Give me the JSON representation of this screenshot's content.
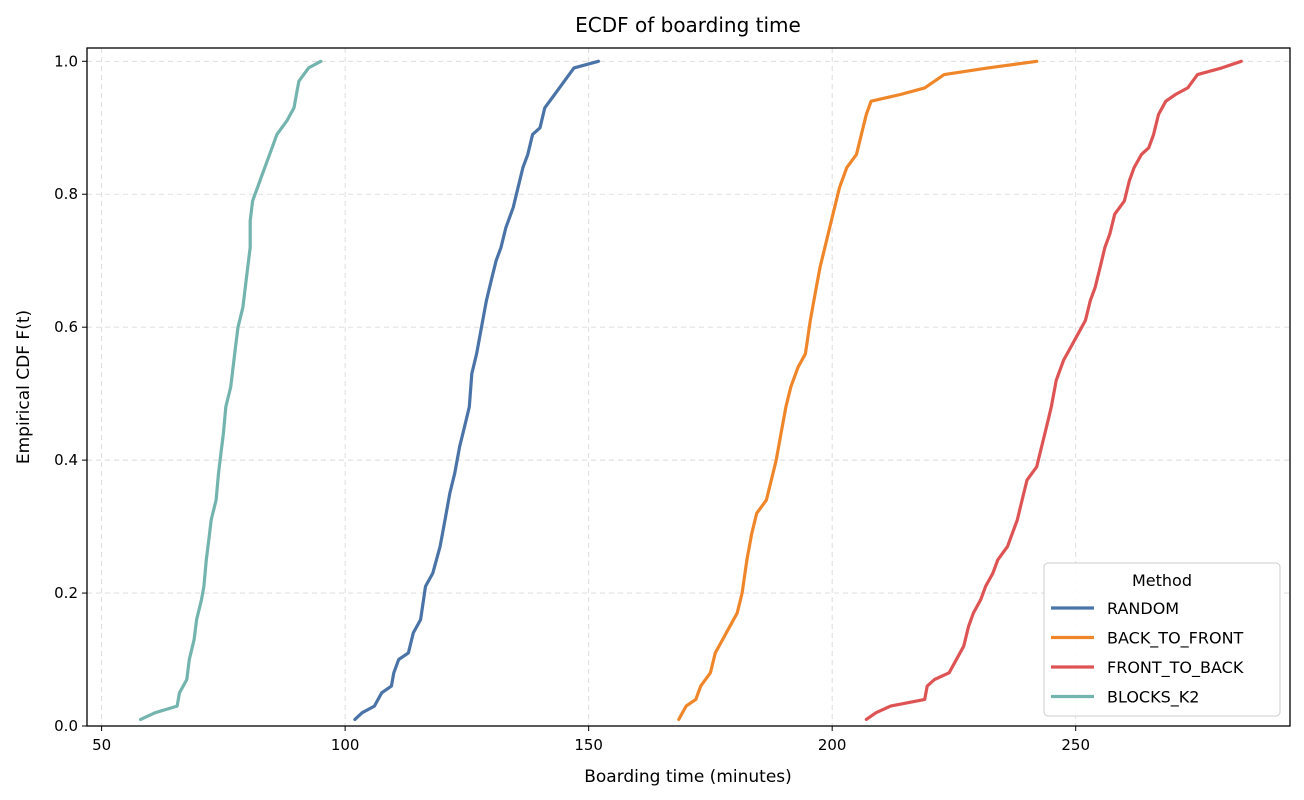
{
  "chart_data": {
    "type": "line",
    "title": "ECDF of boarding time",
    "xlabel": "Boarding time (minutes)",
    "ylabel": "Empirical CDF  F(t)",
    "xlim": [
      47,
      294
    ],
    "ylim": [
      0,
      1.02
    ],
    "xticks": [
      "50",
      "100",
      "150",
      "200",
      "250"
    ],
    "xtick_values": [
      50,
      100,
      150,
      200,
      250
    ],
    "yticks": [
      "0.0",
      "0.2",
      "0.4",
      "0.6",
      "0.8",
      "1.0"
    ],
    "ytick_values": [
      0,
      0.2,
      0.4,
      0.6,
      0.8,
      1.0
    ],
    "grid": true,
    "legend_title": "Method",
    "legend_position": "lower-right",
    "series": [
      {
        "name": "RANDOM",
        "color": "#4a73a8",
        "points": [
          [
            102,
            0.01
          ],
          [
            103.5,
            0.02
          ],
          [
            106,
            0.03
          ],
          [
            107.5,
            0.05
          ],
          [
            109.5,
            0.06
          ],
          [
            110,
            0.08
          ],
          [
            111,
            0.1
          ],
          [
            113,
            0.11
          ],
          [
            114,
            0.14
          ],
          [
            115.5,
            0.16
          ],
          [
            116.5,
            0.21
          ],
          [
            118,
            0.23
          ],
          [
            119.5,
            0.27
          ],
          [
            120.5,
            0.31
          ],
          [
            121.5,
            0.35
          ],
          [
            122.5,
            0.38
          ],
          [
            123.5,
            0.42
          ],
          [
            124.5,
            0.45
          ],
          [
            125.5,
            0.48
          ],
          [
            126,
            0.53
          ],
          [
            127,
            0.56
          ],
          [
            128,
            0.6
          ],
          [
            129,
            0.64
          ],
          [
            130,
            0.67
          ],
          [
            131,
            0.7
          ],
          [
            132,
            0.72
          ],
          [
            133,
            0.75
          ],
          [
            134.5,
            0.78
          ],
          [
            135.5,
            0.81
          ],
          [
            136.5,
            0.84
          ],
          [
            137.5,
            0.86
          ],
          [
            138.5,
            0.89
          ],
          [
            140,
            0.9
          ],
          [
            141,
            0.93
          ],
          [
            143,
            0.95
          ],
          [
            145,
            0.97
          ],
          [
            147,
            0.99
          ],
          [
            152,
            1.0
          ]
        ]
      },
      {
        "name": "BACK_TO_FRONT",
        "color": "#f0862a",
        "points": [
          [
            168.5,
            0.01
          ],
          [
            170,
            0.03
          ],
          [
            172,
            0.04
          ],
          [
            173,
            0.06
          ],
          [
            175,
            0.08
          ],
          [
            176,
            0.11
          ],
          [
            177.5,
            0.13
          ],
          [
            179,
            0.15
          ],
          [
            180.5,
            0.17
          ],
          [
            181.5,
            0.2
          ],
          [
            182.5,
            0.25
          ],
          [
            183.5,
            0.29
          ],
          [
            184.5,
            0.32
          ],
          [
            186.5,
            0.34
          ],
          [
            187.5,
            0.37
          ],
          [
            188.5,
            0.4
          ],
          [
            189.5,
            0.44
          ],
          [
            190.5,
            0.48
          ],
          [
            191.5,
            0.51
          ],
          [
            193,
            0.54
          ],
          [
            194.5,
            0.56
          ],
          [
            195.5,
            0.61
          ],
          [
            196.5,
            0.65
          ],
          [
            197.5,
            0.69
          ],
          [
            198.5,
            0.72
          ],
          [
            199.5,
            0.75
          ],
          [
            200.5,
            0.78
          ],
          [
            201.5,
            0.81
          ],
          [
            203,
            0.84
          ],
          [
            205,
            0.86
          ],
          [
            206,
            0.89
          ],
          [
            207,
            0.92
          ],
          [
            208,
            0.94
          ],
          [
            214,
            0.95
          ],
          [
            219,
            0.96
          ],
          [
            223,
            0.98
          ],
          [
            232,
            0.99
          ],
          [
            242,
            1.0
          ]
        ]
      },
      {
        "name": "FRONT_TO_BACK",
        "color": "#de5353",
        "points": [
          [
            207,
            0.01
          ],
          [
            209,
            0.02
          ],
          [
            212,
            0.03
          ],
          [
            219,
            0.04
          ],
          [
            219.5,
            0.06
          ],
          [
            221,
            0.07
          ],
          [
            224,
            0.08
          ],
          [
            225.5,
            0.1
          ],
          [
            227,
            0.12
          ],
          [
            228,
            0.15
          ],
          [
            229,
            0.17
          ],
          [
            230.5,
            0.19
          ],
          [
            231.5,
            0.21
          ],
          [
            233,
            0.23
          ],
          [
            234,
            0.25
          ],
          [
            236,
            0.27
          ],
          [
            237,
            0.29
          ],
          [
            238,
            0.31
          ],
          [
            239,
            0.34
          ],
          [
            240,
            0.37
          ],
          [
            242,
            0.39
          ],
          [
            243,
            0.42
          ],
          [
            244,
            0.45
          ],
          [
            245,
            0.48
          ],
          [
            246,
            0.52
          ],
          [
            247.5,
            0.55
          ],
          [
            249,
            0.57
          ],
          [
            250.5,
            0.59
          ],
          [
            252,
            0.61
          ],
          [
            253,
            0.64
          ],
          [
            254,
            0.66
          ],
          [
            255,
            0.69
          ],
          [
            256,
            0.72
          ],
          [
            257,
            0.74
          ],
          [
            258,
            0.77
          ],
          [
            260,
            0.79
          ],
          [
            261,
            0.82
          ],
          [
            262,
            0.84
          ],
          [
            263.5,
            0.86
          ],
          [
            265,
            0.87
          ],
          [
            266,
            0.89
          ],
          [
            267,
            0.92
          ],
          [
            268.5,
            0.94
          ],
          [
            270.5,
            0.95
          ],
          [
            273,
            0.96
          ],
          [
            275,
            0.98
          ],
          [
            280,
            0.99
          ],
          [
            284,
            1.0
          ]
        ]
      },
      {
        "name": "BLOCKS_K2",
        "color": "#74b4ae",
        "points": [
          [
            58,
            0.01
          ],
          [
            61,
            0.02
          ],
          [
            65.5,
            0.03
          ],
          [
            66,
            0.05
          ],
          [
            67.5,
            0.07
          ],
          [
            68,
            0.1
          ],
          [
            69,
            0.13
          ],
          [
            69.5,
            0.16
          ],
          [
            70.5,
            0.19
          ],
          [
            71,
            0.21
          ],
          [
            71.5,
            0.25
          ],
          [
            72,
            0.28
          ],
          [
            72.5,
            0.31
          ],
          [
            73.5,
            0.34
          ],
          [
            74,
            0.38
          ],
          [
            74.5,
            0.41
          ],
          [
            75,
            0.44
          ],
          [
            75.5,
            0.48
          ],
          [
            76.5,
            0.51
          ],
          [
            77,
            0.54
          ],
          [
            77.5,
            0.57
          ],
          [
            78,
            0.6
          ],
          [
            79,
            0.63
          ],
          [
            79.5,
            0.66
          ],
          [
            80,
            0.69
          ],
          [
            80.5,
            0.72
          ],
          [
            80.5,
            0.76
          ],
          [
            81,
            0.79
          ],
          [
            82,
            0.81
          ],
          [
            83,
            0.83
          ],
          [
            84,
            0.85
          ],
          [
            85,
            0.87
          ],
          [
            86,
            0.89
          ],
          [
            88,
            0.91
          ],
          [
            89.5,
            0.93
          ],
          [
            90,
            0.95
          ],
          [
            90.5,
            0.97
          ],
          [
            92.5,
            0.99
          ],
          [
            95,
            1.0
          ]
        ]
      }
    ]
  }
}
